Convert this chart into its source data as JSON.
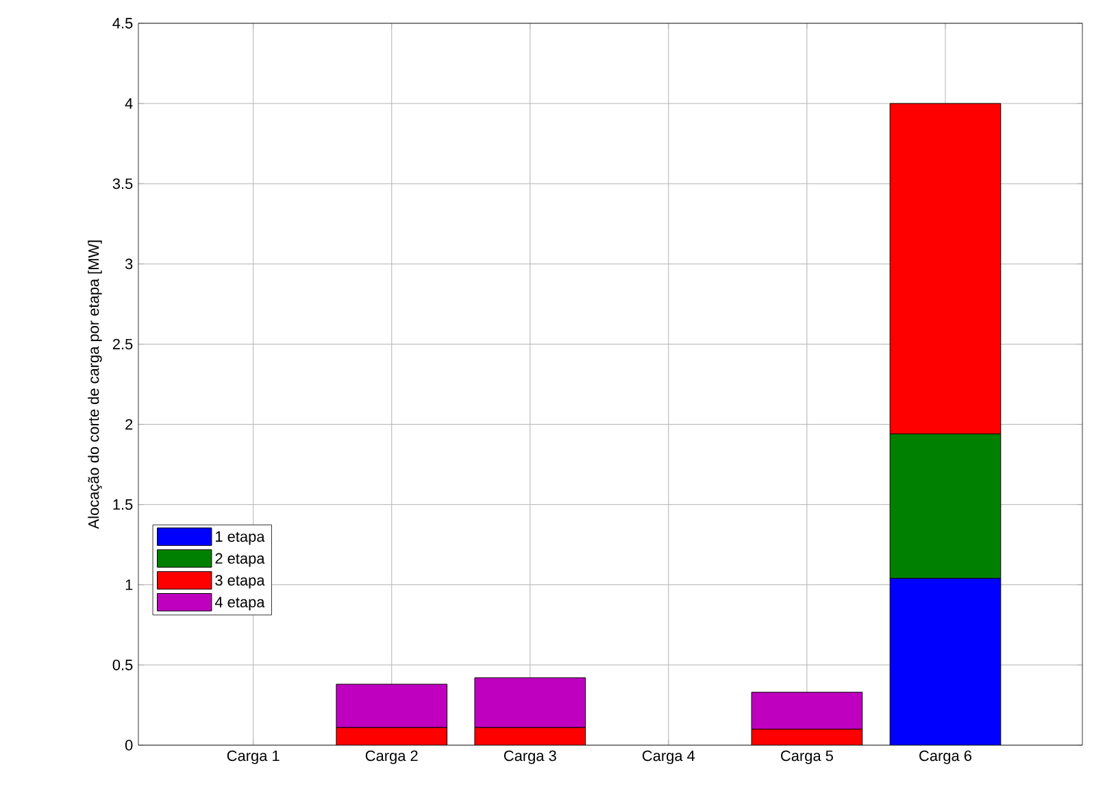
{
  "chart_data": {
    "type": "bar",
    "stacked": true,
    "ylabel": "Alocação do corte de carga por etapa [MW]",
    "categories": [
      "Carga 1",
      "Carga 2",
      "Carga 3",
      "Carga 4",
      "Carga 5",
      "Carga 6"
    ],
    "series": [
      {
        "name": "1 etapa",
        "color": "#0000ff",
        "values": [
          0,
          0,
          0,
          0,
          0,
          1.04
        ]
      },
      {
        "name": "2 etapa",
        "color": "#008000",
        "values": [
          0,
          0,
          0,
          0,
          0,
          0.9
        ]
      },
      {
        "name": "3 etapa",
        "color": "#ff0000",
        "values": [
          0,
          0.11,
          0.11,
          0,
          0.1,
          2.06
        ]
      },
      {
        "name": "4 etapa",
        "color": "#bf00bf",
        "values": [
          0,
          0.27,
          0.31,
          0,
          0.23,
          0
        ]
      }
    ],
    "ylim": [
      0,
      4.5
    ],
    "yticks": [
      0,
      0.5,
      1,
      1.5,
      2,
      2.5,
      3,
      3.5,
      4,
      4.5
    ],
    "grid": true,
    "legend": "left"
  }
}
